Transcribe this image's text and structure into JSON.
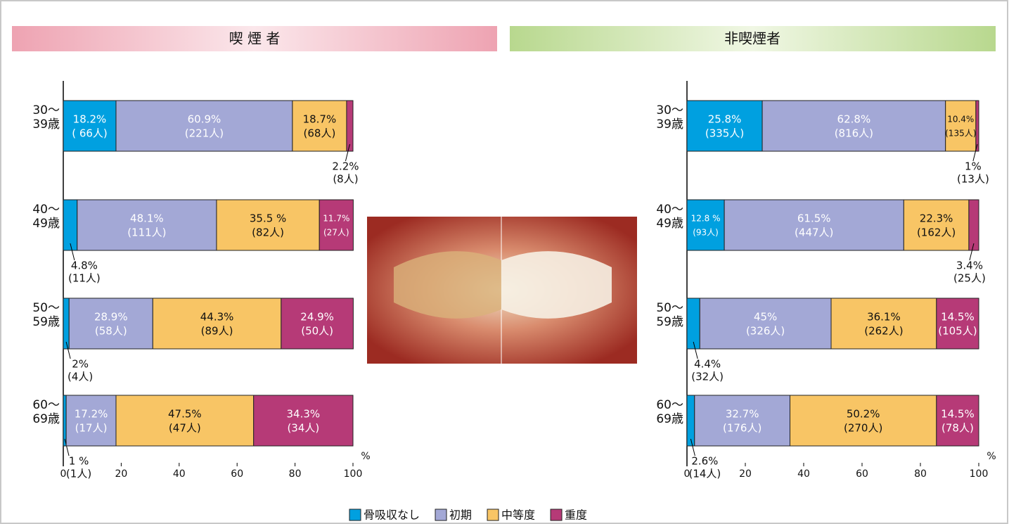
{
  "chart_data": [
    {
      "type": "stacked-barh",
      "title": "喫 煙 者",
      "categories": [
        "30〜\n39歳",
        "40〜\n49歳",
        "50〜\n59歳",
        "60〜\n69歳"
      ],
      "series": [
        {
          "name": "骨吸収なし",
          "color": "#00a0e0",
          "values": [
            18.2,
            4.8,
            2,
            1
          ],
          "value_labels": [
            "18.2%",
            "4.8%",
            "2%",
            "1 %"
          ],
          "count_labels": [
            "( 66人)",
            "(11人)",
            "(4人)",
            "(1人)"
          ]
        },
        {
          "name": "初期",
          "color": "#a3a8d6",
          "values": [
            60.9,
            48.1,
            28.9,
            17.2
          ],
          "value_labels": [
            "60.9%",
            "48.1%",
            "28.9%",
            "17.2%"
          ],
          "count_labels": [
            "(221人)",
            "(111人)",
            "(58人)",
            "(17人)"
          ]
        },
        {
          "name": "中等度",
          "color": "#f8c565",
          "values": [
            18.7,
            35.5,
            44.3,
            47.5
          ],
          "value_labels": [
            "18.7%",
            "35.5 %",
            "44.3%",
            "47.5%"
          ],
          "count_labels": [
            "(68人)",
            "(82人)",
            "(89人)",
            "(47人)"
          ]
        },
        {
          "name": "重度",
          "color": "#b63a77",
          "values": [
            2.2,
            11.7,
            24.9,
            34.3
          ],
          "value_labels": [
            "2.2%",
            "11.7%",
            "24.9%",
            "34.3%"
          ],
          "count_labels": [
            "(8人)",
            "(27人)",
            "(50人)",
            "(34人)"
          ]
        }
      ],
      "xlim": [
        0,
        100
      ],
      "xticks": [
        0,
        20,
        40,
        60,
        80,
        100
      ],
      "xlabel": "%"
    },
    {
      "type": "stacked-barh",
      "title": "非喫煙者",
      "categories": [
        "30〜\n39歳",
        "40〜\n49歳",
        "50〜\n59歳",
        "60〜\n69歳"
      ],
      "series": [
        {
          "color": "#00a0e0",
          "values": [
            25.8,
            12.8,
            4.4,
            2.6
          ],
          "value_labels": [
            "25.8%",
            "12.8 %",
            "4.4%",
            "2.6%"
          ],
          "count_labels": [
            "(335人)",
            "(93人)",
            "(32人)",
            "(14人)"
          ]
        },
        {
          "color": "#a3a8d6",
          "values": [
            62.8,
            61.5,
            45,
            32.7
          ],
          "value_labels": [
            "62.8%",
            "61.5%",
            "45%",
            "32.7%"
          ],
          "count_labels": [
            "(816人)",
            "(447人)",
            "(326人)",
            "(176人)"
          ]
        },
        {
          "color": "#f8c565",
          "values": [
            10.4,
            22.3,
            36.1,
            50.2
          ],
          "value_labels": [
            "10.4%",
            "22.3%",
            "36.1%",
            "50.2%"
          ],
          "count_labels": [
            "(135人)",
            "(162人)",
            "(262人)",
            "(270人)"
          ]
        },
        {
          "color": "#b63a77",
          "values": [
            1,
            3.4,
            14.5,
            14.5
          ],
          "value_labels": [
            "1%",
            "3.4%",
            "14.5%",
            "14.5%"
          ],
          "count_labels": [
            "(13人)",
            "(25人)",
            "(105人)",
            "(78人)"
          ]
        }
      ],
      "xlim": [
        0,
        100
      ],
      "xticks": [
        0,
        20,
        40,
        60,
        80,
        100
      ],
      "xlabel": "%"
    }
  ]
}
